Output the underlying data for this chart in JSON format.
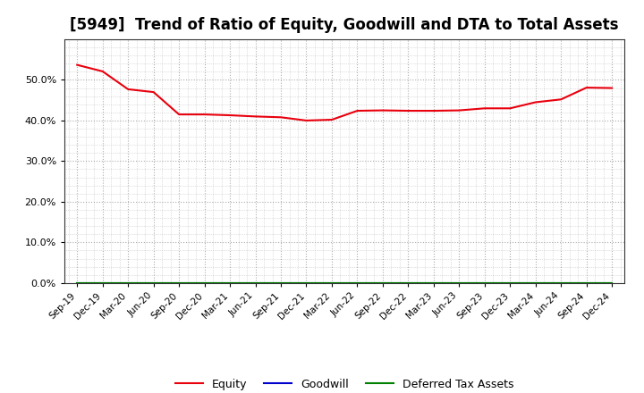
{
  "title": "[5949]  Trend of Ratio of Equity, Goodwill and DTA to Total Assets",
  "x_labels": [
    "Sep-19",
    "Dec-19",
    "Mar-20",
    "Jun-20",
    "Sep-20",
    "Dec-20",
    "Mar-21",
    "Jun-21",
    "Sep-21",
    "Dec-21",
    "Mar-22",
    "Jun-22",
    "Sep-22",
    "Dec-22",
    "Mar-23",
    "Jun-23",
    "Sep-23",
    "Dec-23",
    "Mar-24",
    "Jun-24",
    "Sep-24",
    "Dec-24"
  ],
  "equity": [
    0.537,
    0.521,
    0.477,
    0.47,
    0.415,
    0.415,
    0.413,
    0.41,
    0.408,
    0.4,
    0.402,
    0.424,
    0.425,
    0.424,
    0.424,
    0.425,
    0.43,
    0.43,
    0.445,
    0.452,
    0.481,
    0.48
  ],
  "goodwill": [
    0.0,
    0.0,
    0.0,
    0.0,
    0.0,
    0.0,
    0.0,
    0.0,
    0.0,
    0.0,
    0.0,
    0.0,
    0.0,
    0.0,
    0.0,
    0.0,
    0.0,
    0.0,
    0.0,
    0.0,
    0.0,
    0.0
  ],
  "dta": [
    0.0,
    0.0,
    0.0,
    0.0,
    0.0,
    0.0,
    0.0,
    0.0,
    0.0,
    0.0,
    0.0,
    0.0,
    0.0,
    0.0,
    0.0,
    0.0,
    0.0,
    0.0,
    0.0,
    0.0,
    0.0,
    0.0
  ],
  "equity_color": "#e8000d",
  "goodwill_color": "#0000cd",
  "dta_color": "#008000",
  "ylim": [
    0.0,
    0.6
  ],
  "yticks": [
    0.0,
    0.1,
    0.2,
    0.3,
    0.4,
    0.5
  ],
  "background_color": "#ffffff",
  "plot_bg_color": "#ffffff",
  "grid_color": "#999999",
  "title_fontsize": 12,
  "legend_labels": [
    "Equity",
    "Goodwill",
    "Deferred Tax Assets"
  ]
}
